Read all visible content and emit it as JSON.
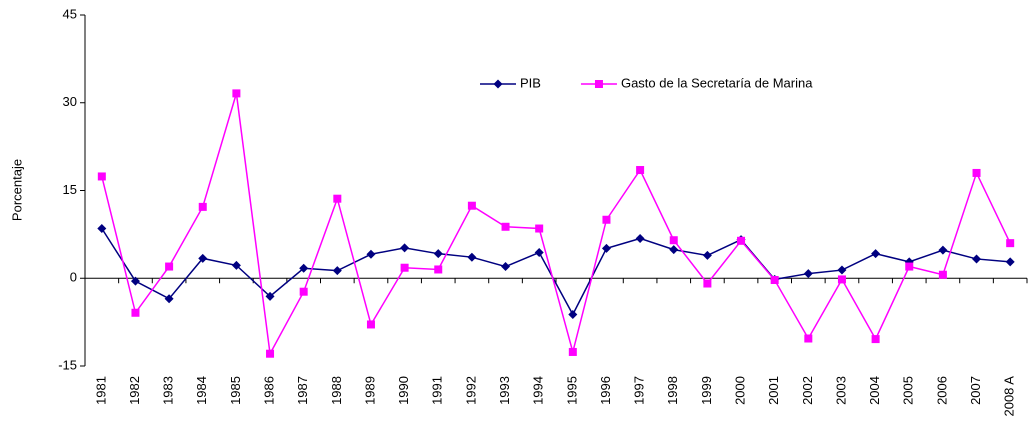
{
  "chart_data": {
    "type": "line",
    "y_label": "Porcentaje",
    "categories": [
      "1981",
      "1982",
      "1983",
      "1984",
      "1985",
      "1986",
      "1987",
      "1988",
      "1989",
      "1990",
      "1991",
      "1992",
      "1993",
      "1994",
      "1995",
      "1996",
      "1997",
      "1998",
      "1999",
      "2000",
      "2001",
      "2002",
      "2003",
      "2004",
      "2005",
      "2006",
      "2007",
      "2008 A"
    ],
    "series": [
      {
        "name": "PIB",
        "color": "#000080",
        "marker": "diamond",
        "values": [
          8.5,
          -0.5,
          -3.5,
          3.4,
          2.2,
          -3.1,
          1.7,
          1.3,
          4.1,
          5.2,
          4.2,
          3.6,
          2.0,
          4.4,
          -6.2,
          5.1,
          6.8,
          4.9,
          3.9,
          6.6,
          -0.2,
          0.8,
          1.4,
          4.2,
          2.8,
          4.8,
          3.3,
          2.8
        ]
      },
      {
        "name": "Gasto de la Secretaría de Marina",
        "color": "#ff00ff",
        "marker": "square",
        "values": [
          17.4,
          -5.9,
          2.0,
          12.2,
          31.6,
          -12.9,
          -2.3,
          13.6,
          -7.9,
          1.8,
          1.5,
          12.4,
          8.8,
          8.5,
          -12.6,
          10.0,
          18.5,
          6.5,
          -0.9,
          6.4,
          -0.3,
          -10.3,
          -0.2,
          -10.4,
          2.0,
          0.6,
          18.0,
          6.0
        ]
      }
    ],
    "ylim": [
      -15,
      45
    ],
    "yticks": [
      -15,
      0,
      15,
      30,
      45
    ],
    "grid": false,
    "legend": "top"
  }
}
